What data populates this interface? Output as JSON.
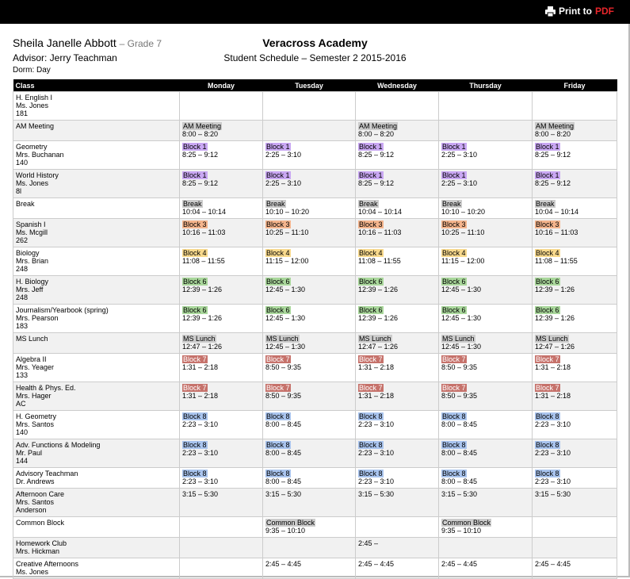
{
  "toolbar": {
    "print": "Print to",
    "pdf": "PDF"
  },
  "header": {
    "student_name": "Sheila Janelle Abbott",
    "grade": "– Grade 7",
    "advisor": "Advisor: Jerry Teachman",
    "dorm": "Dorm: Day",
    "school": "Veracross Academy",
    "subtitle": "Student Schedule – Semester 2 2015-2016"
  },
  "table": {
    "columns": [
      "Class",
      "Monday",
      "Tuesday",
      "Wednesday",
      "Thursday",
      "Friday"
    ],
    "rows": [
      {
        "class": [
          "H. English I",
          "Ms. Jones",
          "181"
        ],
        "cells": [
          null,
          null,
          null,
          null,
          null
        ]
      },
      {
        "class": [
          "AM Meeting"
        ],
        "cells": [
          {
            "label": "AM Meeting",
            "time": "8:00 – 8:20",
            "bg": "#cccccc"
          },
          null,
          {
            "label": "AM Meeting",
            "time": "8:00 – 8:20",
            "bg": "#cccccc"
          },
          null,
          {
            "label": "AM Meeting",
            "time": "8:00 – 8:20",
            "bg": "#cccccc"
          }
        ]
      },
      {
        "class": [
          "Geometry",
          "Mrs. Buchanan",
          "140"
        ],
        "cells": [
          {
            "label": "Block 1",
            "time": "8:25 – 9:12",
            "bg": "#c9a7f3"
          },
          {
            "label": "Block 1",
            "time": "2:25 – 3:10",
            "bg": "#c9a7f3"
          },
          {
            "label": "Block 1",
            "time": "8:25 – 9:12",
            "bg": "#c9a7f3"
          },
          {
            "label": "Block 1",
            "time": "2:25 – 3:10",
            "bg": "#c9a7f3"
          },
          {
            "label": "Block 1",
            "time": "8:25 – 9:12",
            "bg": "#c9a7f3"
          }
        ]
      },
      {
        "class": [
          "World History",
          "Ms. Jones",
          "8l"
        ],
        "cells": [
          {
            "label": "Block 1",
            "time": "8:25 – 9:12",
            "bg": "#c9a7f3"
          },
          {
            "label": "Block 1",
            "time": "2:25 – 3:10",
            "bg": "#c9a7f3"
          },
          {
            "label": "Block 1",
            "time": "8:25 – 9:12",
            "bg": "#c9a7f3"
          },
          {
            "label": "Block 1",
            "time": "2:25 – 3:10",
            "bg": "#c9a7f3"
          },
          {
            "label": "Block 1",
            "time": "8:25 – 9:12",
            "bg": "#c9a7f3"
          }
        ]
      },
      {
        "class": [
          "Break"
        ],
        "cells": [
          {
            "label": "Break",
            "time": "10:04 – 10:14",
            "bg": "#cccccc"
          },
          {
            "label": "Break",
            "time": "10:10 – 10:20",
            "bg": "#cccccc"
          },
          {
            "label": "Break",
            "time": "10:04 – 10:14",
            "bg": "#cccccc"
          },
          {
            "label": "Break",
            "time": "10:10 – 10:20",
            "bg": "#cccccc"
          },
          {
            "label": "Break",
            "time": "10:04 – 10:14",
            "bg": "#cccccc"
          }
        ]
      },
      {
        "class": [
          "Spanish I",
          "Ms. Mcgill",
          "262"
        ],
        "cells": [
          {
            "label": "Block 3",
            "time": "10:16 – 11:03",
            "bg": "#f4b48c"
          },
          {
            "label": "Block 3",
            "time": "10:25 – 11:10",
            "bg": "#f4b48c"
          },
          {
            "label": "Block 3",
            "time": "10:16 – 11:03",
            "bg": "#f4b48c"
          },
          {
            "label": "Block 3",
            "time": "10:25 – 11:10",
            "bg": "#f4b48c"
          },
          {
            "label": "Block 3",
            "time": "10:16 – 11:03",
            "bg": "#f4b48c"
          }
        ]
      },
      {
        "class": [
          "Biology",
          "Mrs. Brian",
          "248"
        ],
        "cells": [
          {
            "label": "Block 4",
            "time": "11:08 – 11:55",
            "bg": "#f8d98c"
          },
          {
            "label": "Block 4",
            "time": "11:15 – 12:00",
            "bg": "#f8d98c"
          },
          {
            "label": "Block 4",
            "time": "11:08 – 11:55",
            "bg": "#f8d98c"
          },
          {
            "label": "Block 4",
            "time": "11:15 – 12:00",
            "bg": "#f8d98c"
          },
          {
            "label": "Block 4",
            "time": "11:08 – 11:55",
            "bg": "#f8d98c"
          }
        ]
      },
      {
        "class": [
          "H. Biology",
          "Mrs. Jeff",
          "248"
        ],
        "cells": [
          {
            "label": "Block 6",
            "time": "12:39 – 1:26",
            "bg": "#a9d79b"
          },
          {
            "label": "Block 6",
            "time": "12:45 – 1:30",
            "bg": "#a9d79b"
          },
          {
            "label": "Block 6",
            "time": "12:39 – 1:26",
            "bg": "#a9d79b"
          },
          {
            "label": "Block 6",
            "time": "12:45 – 1:30",
            "bg": "#a9d79b"
          },
          {
            "label": "Block 6",
            "time": "12:39 – 1:26",
            "bg": "#a9d79b"
          }
        ]
      },
      {
        "class": [
          "Journalism/Yearbook (spring)",
          "Mrs. Pearson",
          "183"
        ],
        "cells": [
          {
            "label": "Block 6",
            "time": "12:39 – 1:26",
            "bg": "#a9d79b"
          },
          {
            "label": "Block 6",
            "time": "12:45 – 1:30",
            "bg": "#a9d79b"
          },
          {
            "label": "Block 6",
            "time": "12:39 – 1:26",
            "bg": "#a9d79b"
          },
          {
            "label": "Block 6",
            "time": "12:45 – 1:30",
            "bg": "#a9d79b"
          },
          {
            "label": "Block 6",
            "time": "12:39 – 1:26",
            "bg": "#a9d79b"
          }
        ]
      },
      {
        "class": [
          "MS Lunch"
        ],
        "cells": [
          {
            "label": "MS Lunch",
            "time": "12:47 – 1:26",
            "bg": "#cccccc"
          },
          {
            "label": "MS Lunch",
            "time": "12:45 – 1:30",
            "bg": "#cccccc"
          },
          {
            "label": "MS Lunch",
            "time": "12:47 – 1:26",
            "bg": "#cccccc"
          },
          {
            "label": "MS Lunch",
            "time": "12:45 – 1:30",
            "bg": "#cccccc"
          },
          {
            "label": "MS Lunch",
            "time": "12:47 – 1:26",
            "bg": "#cccccc"
          }
        ]
      },
      {
        "class": [
          "Algebra II",
          "Mrs. Yeager",
          "133"
        ],
        "cells": [
          {
            "label": "Block 7",
            "time": "1:31 – 2:18",
            "bg": "#c6726b",
            "fg": "#ffffff"
          },
          {
            "label": "Block 7",
            "time": "8:50 – 9:35",
            "bg": "#c6726b",
            "fg": "#ffffff"
          },
          {
            "label": "Block 7",
            "time": "1:31 – 2:18",
            "bg": "#c6726b",
            "fg": "#ffffff"
          },
          {
            "label": "Block 7",
            "time": "8:50 – 9:35",
            "bg": "#c6726b",
            "fg": "#ffffff"
          },
          {
            "label": "Block 7",
            "time": "1:31 – 2:18",
            "bg": "#c6726b",
            "fg": "#ffffff"
          }
        ]
      },
      {
        "class": [
          "Health & Phys. Ed.",
          "Mrs. Hager",
          "AC"
        ],
        "cells": [
          {
            "label": "Block 7",
            "time": "1:31 – 2:18",
            "bg": "#c6726b",
            "fg": "#ffffff"
          },
          {
            "label": "Block 7",
            "time": "8:50 – 9:35",
            "bg": "#c6726b",
            "fg": "#ffffff"
          },
          {
            "label": "Block 7",
            "time": "1:31 – 2:18",
            "bg": "#c6726b",
            "fg": "#ffffff"
          },
          {
            "label": "Block 7",
            "time": "8:50 – 9:35",
            "bg": "#c6726b",
            "fg": "#ffffff"
          },
          {
            "label": "Block 7",
            "time": "1:31 – 2:18",
            "bg": "#c6726b",
            "fg": "#ffffff"
          }
        ]
      },
      {
        "class": [
          "H. Geometry",
          "Mrs. Santos",
          "140"
        ],
        "cells": [
          {
            "label": "Block 8",
            "time": "2:23 – 3:10",
            "bg": "#a9c4ee"
          },
          {
            "label": "Block 8",
            "time": "8:00 – 8:45",
            "bg": "#a9c4ee"
          },
          {
            "label": "Block 8",
            "time": "2:23 – 3:10",
            "bg": "#a9c4ee"
          },
          {
            "label": "Block 8",
            "time": "8:00 – 8:45",
            "bg": "#a9c4ee"
          },
          {
            "label": "Block 8",
            "time": "2:23 – 3:10",
            "bg": "#a9c4ee"
          }
        ]
      },
      {
        "class": [
          "Adv. Functions & Modeling",
          "Mr. Paul",
          "144"
        ],
        "cells": [
          {
            "label": "Block 8",
            "time": "2:23 – 3:10",
            "bg": "#a9c4ee"
          },
          {
            "label": "Block 8",
            "time": "8:00 – 8:45",
            "bg": "#a9c4ee"
          },
          {
            "label": "Block 8",
            "time": "2:23 – 3:10",
            "bg": "#a9c4ee"
          },
          {
            "label": "Block 8",
            "time": "8:00 – 8:45",
            "bg": "#a9c4ee"
          },
          {
            "label": "Block 8",
            "time": "2:23 – 3:10",
            "bg": "#a9c4ee"
          }
        ]
      },
      {
        "class": [
          "Advisory Teachman",
          "Dr. Andrews"
        ],
        "cells": [
          {
            "label": "Block 8",
            "time": "2:23 – 3:10",
            "bg": "#a9c4ee"
          },
          {
            "label": "Block 8",
            "time": "8:00 – 8:45",
            "bg": "#a9c4ee"
          },
          {
            "label": "Block 8",
            "time": "2:23 – 3:10",
            "bg": "#a9c4ee"
          },
          {
            "label": "Block 8",
            "time": "8:00 – 8:45",
            "bg": "#a9c4ee"
          },
          {
            "label": "Block 8",
            "time": "2:23 – 3:10",
            "bg": "#a9c4ee"
          }
        ]
      },
      {
        "class": [
          "Afternoon Care",
          "Mrs. Santos",
          "Anderson"
        ],
        "cells": [
          {
            "time": "3:15 – 5:30"
          },
          {
            "time": "3:15 – 5:30"
          },
          {
            "time": "3:15 – 5:30"
          },
          {
            "time": "3:15 – 5:30"
          },
          {
            "time": "3:15 – 5:30"
          }
        ]
      },
      {
        "class": [
          "Common Block"
        ],
        "cells": [
          null,
          {
            "label": "Common Block",
            "time": "9:35 – 10:10",
            "bg": "#cccccc"
          },
          null,
          {
            "label": "Common Block",
            "time": "9:35 – 10:10",
            "bg": "#cccccc"
          },
          null
        ]
      },
      {
        "class": [
          "Homework Club",
          "Mrs. Hickman"
        ],
        "cells": [
          null,
          null,
          {
            "time": "2:45 –"
          },
          null,
          null
        ]
      },
      {
        "class": [
          "Creative Afternoons",
          "Ms. Jones"
        ],
        "cells": [
          null,
          {
            "time": "2:45 – 4:45"
          },
          {
            "time": "2:45 – 4:45"
          },
          {
            "time": "2:45 – 4:45"
          },
          {
            "time": "2:45 – 4:45"
          }
        ]
      }
    ]
  }
}
